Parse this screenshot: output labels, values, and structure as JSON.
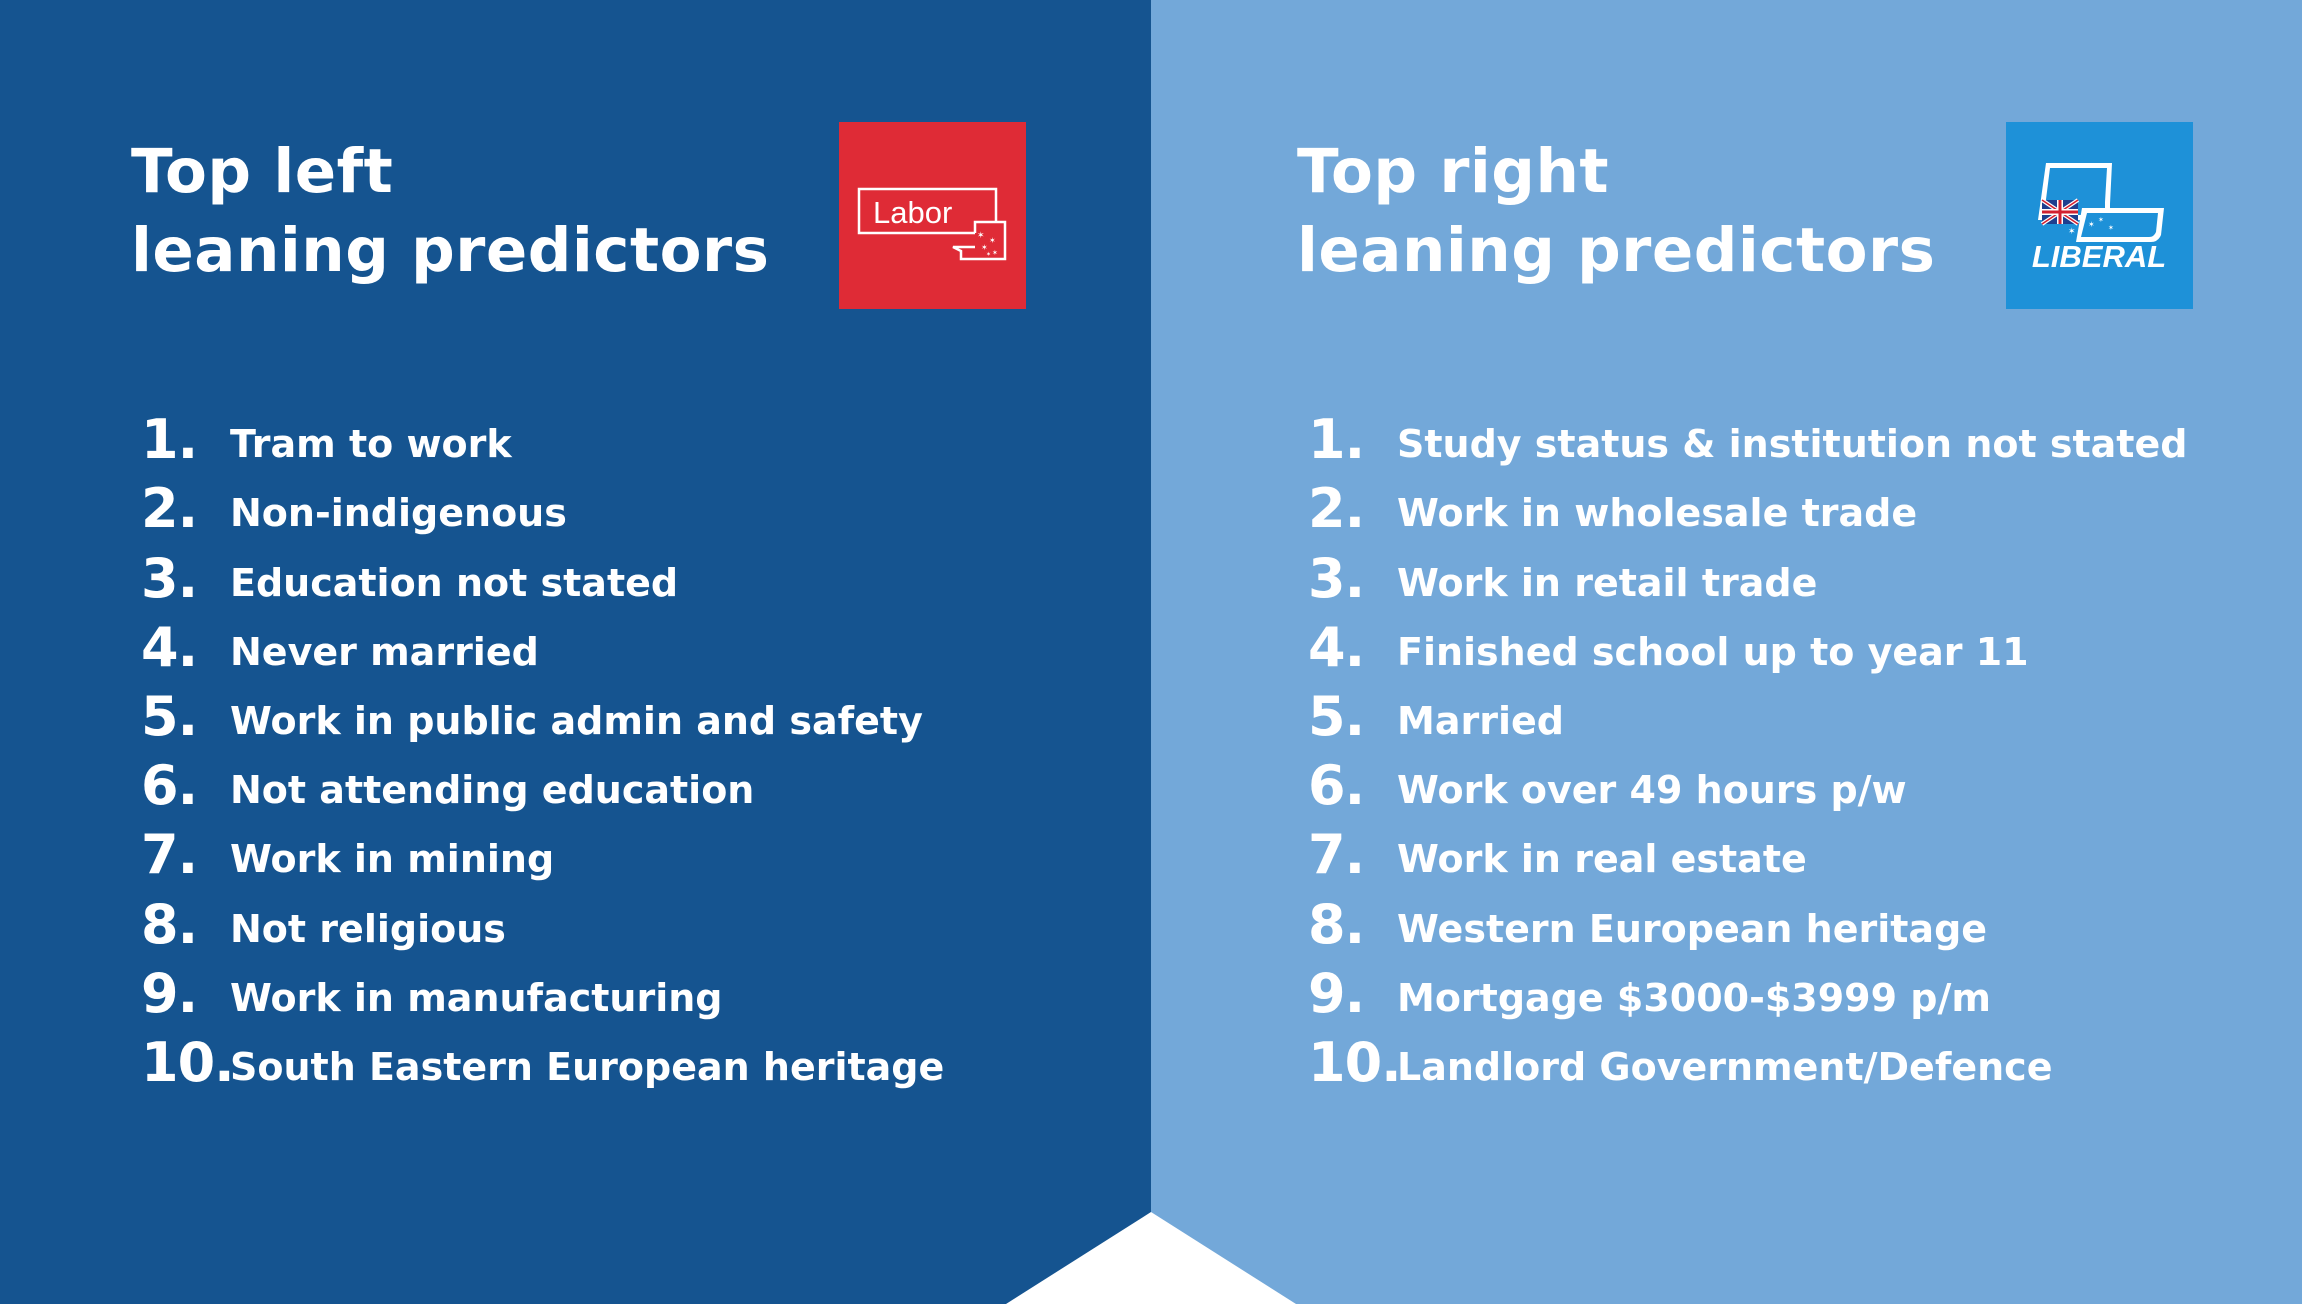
{
  "left": {
    "title_line1": "Top left",
    "title_line2": "leaning predictors",
    "logo_text": "Labor",
    "logo_color": "#df2b36",
    "background": "#155490",
    "items": [
      {
        "num": "1.",
        "label": "Tram to work"
      },
      {
        "num": "2.",
        "label": "Non-indigenous"
      },
      {
        "num": "3.",
        "label": "Education not stated"
      },
      {
        "num": "4.",
        "label": "Never married"
      },
      {
        "num": "5.",
        "label": "Work in public admin and safety"
      },
      {
        "num": "6.",
        "label": "Not attending education"
      },
      {
        "num": "7.",
        "label": "Work in mining"
      },
      {
        "num": "8.",
        "label": "Not religious"
      },
      {
        "num": "9.",
        "label": "Work in manufacturing"
      },
      {
        "num": "10.",
        "label": "South Eastern European heritage"
      }
    ]
  },
  "right": {
    "title_line1": "Top right",
    "title_line2": "leaning predictors",
    "logo_text": "LIBERAL",
    "logo_color": "#1e91d8",
    "background": "#73a8d9",
    "items": [
      {
        "num": "1.",
        "label": "Study status & institution not stated"
      },
      {
        "num": "2.",
        "label": "Work in wholesale trade"
      },
      {
        "num": "3.",
        "label": "Work in retail trade"
      },
      {
        "num": "4.",
        "label": "Finished school up to year 11"
      },
      {
        "num": "5.",
        "label": "Married"
      },
      {
        "num": "6.",
        "label": "Work over 49 hours p/w"
      },
      {
        "num": "7.",
        "label": "Work in real estate"
      },
      {
        "num": "8.",
        "label": "Western European heritage"
      },
      {
        "num": "9.",
        "label": "Mortgage $3000-$3999 p/m"
      },
      {
        "num": "10.",
        "label": "Landlord Government/Defence"
      }
    ]
  }
}
